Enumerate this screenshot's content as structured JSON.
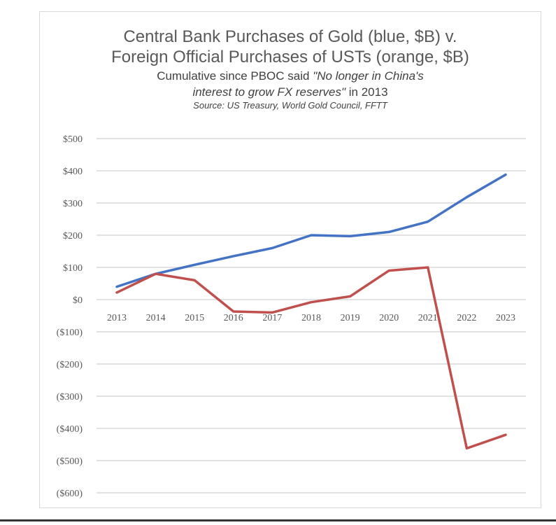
{
  "titles": {
    "line1": "Central Bank Purchases of Gold (blue, $B) v.",
    "line2": "Foreign Official Purchases of USTs (orange, $B)",
    "line3a": "Cumulative since PBOC said ",
    "line3b": "\"No longer in China's",
    "line4a": "interest to grow FX reserves\"",
    "line4b": " in 2013",
    "source": "Source: US Treasury, World Gold Council, FFTT"
  },
  "chart_data": {
    "type": "line",
    "title": "Central Bank Purchases of Gold (blue, $B) v. Foreign Official Purchases of USTs (orange, $B)",
    "subtitle": "Cumulative since PBOC said \"No longer in China's interest to grow FX reserves\" in 2013",
    "source": "Source: US Treasury, World Gold Council, FFTT",
    "categories": [
      "2013",
      "2014",
      "2015",
      "2016",
      "2017",
      "2018",
      "2019",
      "2020",
      "2021",
      "2022",
      "2023"
    ],
    "series": [
      {
        "values": [
          40,
          80,
          108,
          135,
          160,
          200,
          197,
          210,
          242,
          318,
          388
        ],
        "color": "#4472c4"
      },
      {
        "values": [
          22,
          80,
          60,
          -37,
          -40,
          -8,
          10,
          90,
          100,
          -462,
          -420
        ],
        "color": "#c0504d"
      }
    ],
    "ylim": [
      -600,
      500
    ],
    "yticks": [
      500,
      400,
      300,
      200,
      100,
      0,
      -100,
      -200,
      -300,
      -400,
      -500,
      -600
    ],
    "ytick_labels": [
      "$500",
      "$400",
      "$300",
      "$200",
      "$100",
      "$0",
      "($100)",
      "($200)",
      "($300)",
      "($400)",
      "($500)",
      "($600)"
    ],
    "grid": true,
    "legend": "none",
    "xlabel": "",
    "ylabel": ""
  }
}
